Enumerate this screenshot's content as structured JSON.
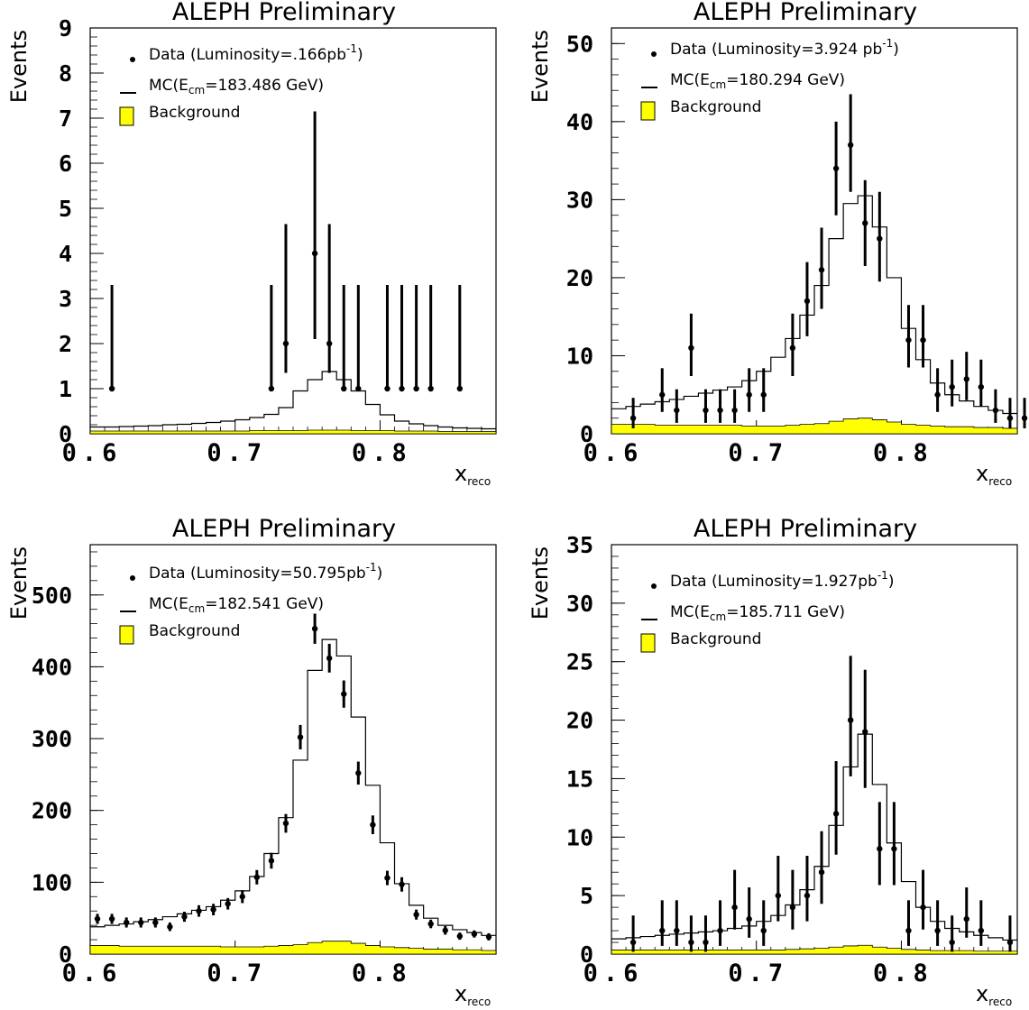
{
  "chart_data": [
    {
      "type": "histogram",
      "title": "ALEPH Preliminary",
      "xlabel": "x",
      "xlabel_subscript": "reco",
      "ylabel": "Events",
      "xlim": [
        0.6,
        0.88
      ],
      "ylim": [
        0,
        9
      ],
      "x_ticks": [
        "0.6",
        "0.7",
        "0.8"
      ],
      "y_ticks": [
        "0",
        "1",
        "2",
        "3",
        "4",
        "5",
        "6",
        "7",
        "8",
        "9"
      ],
      "legend": {
        "data": "Data (Luminosity=.166pb",
        "data_sup": "-1",
        "data_close": ")",
        "mc_prefix": "MC(E",
        "mc_sub": "cm",
        "mc_suffix": "=183.486 GeV)",
        "background": "Background"
      },
      "bin_edges": [
        0.6,
        0.61,
        0.62,
        0.63,
        0.64,
        0.65,
        0.66,
        0.67,
        0.68,
        0.69,
        0.7,
        0.71,
        0.72,
        0.73,
        0.74,
        0.75,
        0.76,
        0.77,
        0.78,
        0.79,
        0.8,
        0.81,
        0.82,
        0.83,
        0.84,
        0.85,
        0.86,
        0.87,
        0.88
      ],
      "mc": [
        0.15,
        0.15,
        0.16,
        0.17,
        0.18,
        0.2,
        0.21,
        0.23,
        0.25,
        0.28,
        0.31,
        0.36,
        0.43,
        0.58,
        0.95,
        1.2,
        1.38,
        1.2,
        0.95,
        0.65,
        0.42,
        0.28,
        0.22,
        0.18,
        0.15,
        0.13,
        0.12,
        0.11
      ],
      "background": [
        0.06,
        0.06,
        0.06,
        0.06,
        0.06,
        0.06,
        0.06,
        0.06,
        0.06,
        0.06,
        0.06,
        0.07,
        0.07,
        0.07,
        0.07,
        0.08,
        0.08,
        0.08,
        0.07,
        0.07,
        0.07,
        0.06,
        0.06,
        0.06,
        0.05,
        0.05,
        0.05,
        0.05
      ],
      "data_points": [
        {
          "x": 0.615,
          "y": 1,
          "err": [
            1,
            3.3
          ]
        },
        {
          "x": 0.725,
          "y": 1,
          "err": [
            1,
            3.3
          ]
        },
        {
          "x": 0.735,
          "y": 2,
          "err": [
            1.35,
            4.65
          ]
        },
        {
          "x": 0.755,
          "y": 4,
          "err": [
            2.1,
            7.15
          ]
        },
        {
          "x": 0.765,
          "y": 2,
          "err": [
            1.35,
            4.65
          ]
        },
        {
          "x": 0.775,
          "y": 1,
          "err": [
            1,
            3.3
          ]
        },
        {
          "x": 0.785,
          "y": 1,
          "err": [
            1,
            3.3
          ]
        },
        {
          "x": 0.805,
          "y": 1,
          "err": [
            1,
            3.3
          ]
        },
        {
          "x": 0.815,
          "y": 1,
          "err": [
            1,
            3.3
          ]
        },
        {
          "x": 0.825,
          "y": 1,
          "err": [
            1,
            3.3
          ]
        },
        {
          "x": 0.835,
          "y": 1,
          "err": [
            1,
            3.3
          ]
        },
        {
          "x": 0.855,
          "y": 1,
          "err": [
            1,
            3.3
          ]
        }
      ]
    },
    {
      "type": "histogram",
      "title": "ALEPH Preliminary",
      "xlabel": "x",
      "xlabel_subscript": "reco",
      "ylabel": "Events",
      "xlim": [
        0.6,
        0.88
      ],
      "ylim": [
        0,
        52
      ],
      "x_ticks": [
        "0.6",
        "0.7",
        "0.8"
      ],
      "y_ticks": [
        "0",
        "10",
        "20",
        "30",
        "40",
        "50"
      ],
      "legend": {
        "data": "Data (Luminosity=3.924 pb",
        "data_sup": "-1",
        "data_close": ")",
        "mc_prefix": "MC(E",
        "mc_sub": "cm",
        "mc_suffix": "=180.294 GeV)",
        "background": "Background"
      },
      "bin_edges": [
        0.6,
        0.61,
        0.62,
        0.63,
        0.64,
        0.65,
        0.66,
        0.67,
        0.68,
        0.69,
        0.7,
        0.71,
        0.72,
        0.73,
        0.74,
        0.75,
        0.76,
        0.77,
        0.78,
        0.79,
        0.8,
        0.81,
        0.82,
        0.83,
        0.84,
        0.85,
        0.86,
        0.87,
        0.88
      ],
      "mc": [
        3.2,
        3.5,
        3.8,
        4.1,
        4.4,
        4.8,
        5.2,
        5.6,
        6.0,
        6.8,
        8.0,
        9.8,
        12.2,
        15.2,
        19.0,
        25.0,
        29.5,
        30.5,
        26.5,
        20.0,
        13.5,
        9.5,
        6.5,
        5.0,
        4.2,
        3.5,
        3.0,
        2.6
      ],
      "background": [
        1.2,
        1.2,
        1.2,
        1.1,
        1.1,
        1.1,
        1.1,
        1.1,
        1.1,
        1.0,
        1.0,
        1.0,
        1.1,
        1.2,
        1.3,
        1.6,
        1.9,
        2.0,
        1.8,
        1.5,
        1.2,
        1.1,
        1.0,
        0.9,
        0.9,
        0.8,
        0.8,
        0.7
      ],
      "data_points": [
        {
          "x": 0.615,
          "y": 2,
          "err": [
            0.7,
            4.6
          ]
        },
        {
          "x": 0.635,
          "y": 5,
          "err": [
            2.8,
            8.4
          ]
        },
        {
          "x": 0.645,
          "y": 3,
          "err": [
            1.4,
            5.7
          ]
        },
        {
          "x": 0.655,
          "y": 11,
          "err": [
            7.4,
            15.4
          ]
        },
        {
          "x": 0.665,
          "y": 3,
          "err": [
            1.4,
            5.7
          ]
        },
        {
          "x": 0.675,
          "y": 3,
          "err": [
            1.4,
            5.7
          ]
        },
        {
          "x": 0.685,
          "y": 3,
          "err": [
            1.4,
            5.7
          ]
        },
        {
          "x": 0.695,
          "y": 5,
          "err": [
            2.8,
            8.4
          ]
        },
        {
          "x": 0.705,
          "y": 5,
          "err": [
            2.8,
            8.4
          ]
        },
        {
          "x": 0.725,
          "y": 11,
          "err": [
            7.4,
            15.4
          ]
        },
        {
          "x": 0.735,
          "y": 17,
          "err": [
            12.5,
            22.0
          ]
        },
        {
          "x": 0.745,
          "y": 21,
          "err": [
            16.0,
            26.4
          ]
        },
        {
          "x": 0.755,
          "y": 34,
          "err": [
            28.0,
            40.0
          ]
        },
        {
          "x": 0.765,
          "y": 37,
          "err": [
            31.0,
            43.5
          ]
        },
        {
          "x": 0.775,
          "y": 27,
          "err": [
            21.5,
            32.5
          ]
        },
        {
          "x": 0.785,
          "y": 25,
          "err": [
            19.5,
            31.0
          ]
        },
        {
          "x": 0.805,
          "y": 12,
          "err": [
            8.5,
            16.5
          ]
        },
        {
          "x": 0.815,
          "y": 12,
          "err": [
            8.5,
            16.5
          ]
        },
        {
          "x": 0.825,
          "y": 5,
          "err": [
            2.8,
            8.4
          ]
        },
        {
          "x": 0.835,
          "y": 6,
          "err": [
            3.5,
            9.5
          ]
        },
        {
          "x": 0.845,
          "y": 7,
          "err": [
            4.3,
            10.5
          ]
        },
        {
          "x": 0.855,
          "y": 6,
          "err": [
            3.5,
            9.5
          ]
        },
        {
          "x": 0.865,
          "y": 3,
          "err": [
            1.4,
            5.7
          ]
        },
        {
          "x": 0.875,
          "y": 2,
          "err": [
            0.7,
            4.6
          ]
        },
        {
          "x": 0.885,
          "y": 2,
          "err": [
            0.7,
            4.6
          ]
        }
      ]
    },
    {
      "type": "histogram",
      "title": "ALEPH Preliminary",
      "xlabel": "x",
      "xlabel_subscript": "reco",
      "ylabel": "Events",
      "xlim": [
        0.6,
        0.88
      ],
      "ylim": [
        0,
        570
      ],
      "x_ticks": [
        "0.6",
        "0.7",
        "0.8"
      ],
      "y_ticks": [
        "0",
        "100",
        "200",
        "300",
        "400",
        "500"
      ],
      "legend": {
        "data": "Data (Luminosity=50.795pb",
        "data_sup": "-1",
        "data_close": ")",
        "mc_prefix": "MC(E",
        "mc_sub": "cm",
        "mc_suffix": "=182.541 GeV)",
        "background": "Background"
      },
      "bin_edges": [
        0.6,
        0.61,
        0.62,
        0.63,
        0.64,
        0.65,
        0.66,
        0.67,
        0.68,
        0.69,
        0.7,
        0.71,
        0.72,
        0.73,
        0.74,
        0.75,
        0.76,
        0.77,
        0.78,
        0.79,
        0.8,
        0.81,
        0.82,
        0.83,
        0.84,
        0.85,
        0.86,
        0.87,
        0.88
      ],
      "mc": [
        38,
        40,
        42,
        45,
        48,
        52,
        56,
        61,
        66,
        75,
        88,
        108,
        140,
        190,
        270,
        395,
        438,
        415,
        330,
        235,
        155,
        98,
        68,
        50,
        40,
        34,
        30,
        26
      ],
      "background": [
        12,
        12,
        11,
        11,
        11,
        11,
        11,
        11,
        11,
        10,
        10,
        10,
        11,
        12,
        13,
        16,
        18,
        18,
        15,
        12,
        10,
        9,
        8,
        7,
        7,
        6,
        6,
        5
      ],
      "data_points": [
        {
          "x": 0.605,
          "y": 49,
          "err": [
            42,
            56
          ]
        },
        {
          "x": 0.615,
          "y": 49,
          "err": [
            42,
            56
          ]
        },
        {
          "x": 0.625,
          "y": 44,
          "err": [
            37,
            51
          ]
        },
        {
          "x": 0.635,
          "y": 44,
          "err": [
            37,
            51
          ]
        },
        {
          "x": 0.645,
          "y": 44,
          "err": [
            37,
            51
          ]
        },
        {
          "x": 0.655,
          "y": 38,
          "err": [
            32,
            44
          ]
        },
        {
          "x": 0.665,
          "y": 52,
          "err": [
            45,
            59
          ]
        },
        {
          "x": 0.675,
          "y": 60,
          "err": [
            52,
            68
          ]
        },
        {
          "x": 0.685,
          "y": 62,
          "err": [
            54,
            70
          ]
        },
        {
          "x": 0.695,
          "y": 70,
          "err": [
            62,
            78
          ]
        },
        {
          "x": 0.705,
          "y": 80,
          "err": [
            71,
            89
          ]
        },
        {
          "x": 0.715,
          "y": 107,
          "err": [
            97,
            117
          ]
        },
        {
          "x": 0.725,
          "y": 130,
          "err": [
            119,
            141
          ]
        },
        {
          "x": 0.735,
          "y": 182,
          "err": [
            169,
            195
          ]
        },
        {
          "x": 0.745,
          "y": 302,
          "err": [
            285,
            319
          ]
        },
        {
          "x": 0.755,
          "y": 453,
          "err": [
            432,
            474
          ]
        },
        {
          "x": 0.765,
          "y": 412,
          "err": [
            392,
            432
          ]
        },
        {
          "x": 0.775,
          "y": 362,
          "err": [
            343,
            381
          ]
        },
        {
          "x": 0.785,
          "y": 252,
          "err": [
            236,
            268
          ]
        },
        {
          "x": 0.795,
          "y": 180,
          "err": [
            167,
            193
          ]
        },
        {
          "x": 0.805,
          "y": 106,
          "err": [
            96,
            116
          ]
        },
        {
          "x": 0.815,
          "y": 97,
          "err": [
            87,
            107
          ]
        },
        {
          "x": 0.825,
          "y": 55,
          "err": [
            48,
            62
          ]
        },
        {
          "x": 0.835,
          "y": 42,
          "err": [
            36,
            48
          ]
        },
        {
          "x": 0.845,
          "y": 33,
          "err": [
            27,
            39
          ]
        },
        {
          "x": 0.855,
          "y": 25,
          "err": [
            20,
            30
          ]
        },
        {
          "x": 0.865,
          "y": 28,
          "err": [
            23,
            33
          ]
        },
        {
          "x": 0.875,
          "y": 24,
          "err": [
            19,
            29
          ]
        }
      ]
    },
    {
      "type": "histogram",
      "title": "ALEPH Preliminary",
      "xlabel": "x",
      "xlabel_subscript": "reco",
      "ylabel": "Events",
      "xlim": [
        0.6,
        0.88
      ],
      "ylim": [
        0,
        35
      ],
      "x_ticks": [
        "0.6",
        "0.7",
        "0.8"
      ],
      "y_ticks": [
        "0",
        "5",
        "10",
        "15",
        "20",
        "25",
        "30",
        "35"
      ],
      "legend": {
        "data": "Data (Luminosity=1.927pb",
        "data_sup": "-1",
        "data_close": ")",
        "mc_prefix": "MC(E",
        "mc_sub": "cm",
        "mc_suffix": "=185.711 GeV)",
        "background": "Background"
      },
      "bin_edges": [
        0.6,
        0.61,
        0.62,
        0.63,
        0.64,
        0.65,
        0.66,
        0.67,
        0.68,
        0.69,
        0.7,
        0.71,
        0.72,
        0.73,
        0.74,
        0.75,
        0.76,
        0.77,
        0.78,
        0.79,
        0.8,
        0.81,
        0.82,
        0.83,
        0.84,
        0.85,
        0.86,
        0.87,
        0.88
      ],
      "mc": [
        1.3,
        1.4,
        1.5,
        1.6,
        1.7,
        1.8,
        1.9,
        2.0,
        2.2,
        2.4,
        2.8,
        3.3,
        4.2,
        5.5,
        7.5,
        11.0,
        16.0,
        18.8,
        14.5,
        9.5,
        6.2,
        4.0,
        2.8,
        2.2,
        1.9,
        1.6,
        1.4,
        1.2
      ],
      "background": [
        0.35,
        0.35,
        0.35,
        0.35,
        0.35,
        0.35,
        0.35,
        0.35,
        0.35,
        0.35,
        0.35,
        0.35,
        0.4,
        0.45,
        0.5,
        0.6,
        0.7,
        0.75,
        0.6,
        0.5,
        0.4,
        0.35,
        0.3,
        0.3,
        0.3,
        0.25,
        0.25,
        0.25
      ],
      "data_points": [
        {
          "x": 0.615,
          "y": 1,
          "err": [
            0.2,
            3.3
          ]
        },
        {
          "x": 0.635,
          "y": 2,
          "err": [
            0.7,
            4.6
          ]
        },
        {
          "x": 0.645,
          "y": 2,
          "err": [
            0.7,
            4.6
          ]
        },
        {
          "x": 0.655,
          "y": 1,
          "err": [
            0.2,
            3.3
          ]
        },
        {
          "x": 0.665,
          "y": 1,
          "err": [
            0.2,
            3.3
          ]
        },
        {
          "x": 0.675,
          "y": 2,
          "err": [
            0.7,
            4.6
          ]
        },
        {
          "x": 0.685,
          "y": 4,
          "err": [
            2.1,
            7.2
          ]
        },
        {
          "x": 0.695,
          "y": 3,
          "err": [
            1.4,
            5.7
          ]
        },
        {
          "x": 0.705,
          "y": 2,
          "err": [
            0.7,
            4.6
          ]
        },
        {
          "x": 0.715,
          "y": 5,
          "err": [
            2.8,
            8.4
          ]
        },
        {
          "x": 0.725,
          "y": 4,
          "err": [
            2.1,
            7.2
          ]
        },
        {
          "x": 0.735,
          "y": 5,
          "err": [
            2.8,
            8.4
          ]
        },
        {
          "x": 0.745,
          "y": 7,
          "err": [
            4.3,
            10.5
          ]
        },
        {
          "x": 0.755,
          "y": 12,
          "err": [
            8.5,
            16.5
          ]
        },
        {
          "x": 0.765,
          "y": 20,
          "err": [
            15.2,
            25.5
          ]
        },
        {
          "x": 0.775,
          "y": 19,
          "err": [
            14.2,
            24.3
          ]
        },
        {
          "x": 0.785,
          "y": 9,
          "err": [
            5.9,
            13.0
          ]
        },
        {
          "x": 0.795,
          "y": 9,
          "err": [
            5.9,
            13.0
          ]
        },
        {
          "x": 0.805,
          "y": 2,
          "err": [
            0.7,
            4.6
          ]
        },
        {
          "x": 0.815,
          "y": 4,
          "err": [
            2.1,
            7.2
          ]
        },
        {
          "x": 0.825,
          "y": 2,
          "err": [
            0.7,
            4.6
          ]
        },
        {
          "x": 0.835,
          "y": 1,
          "err": [
            0.2,
            3.3
          ]
        },
        {
          "x": 0.845,
          "y": 3,
          "err": [
            1.4,
            5.7
          ]
        },
        {
          "x": 0.855,
          "y": 2,
          "err": [
            0.7,
            4.6
          ]
        },
        {
          "x": 0.875,
          "y": 1,
          "err": [
            0.2,
            3.3
          ]
        }
      ]
    }
  ]
}
